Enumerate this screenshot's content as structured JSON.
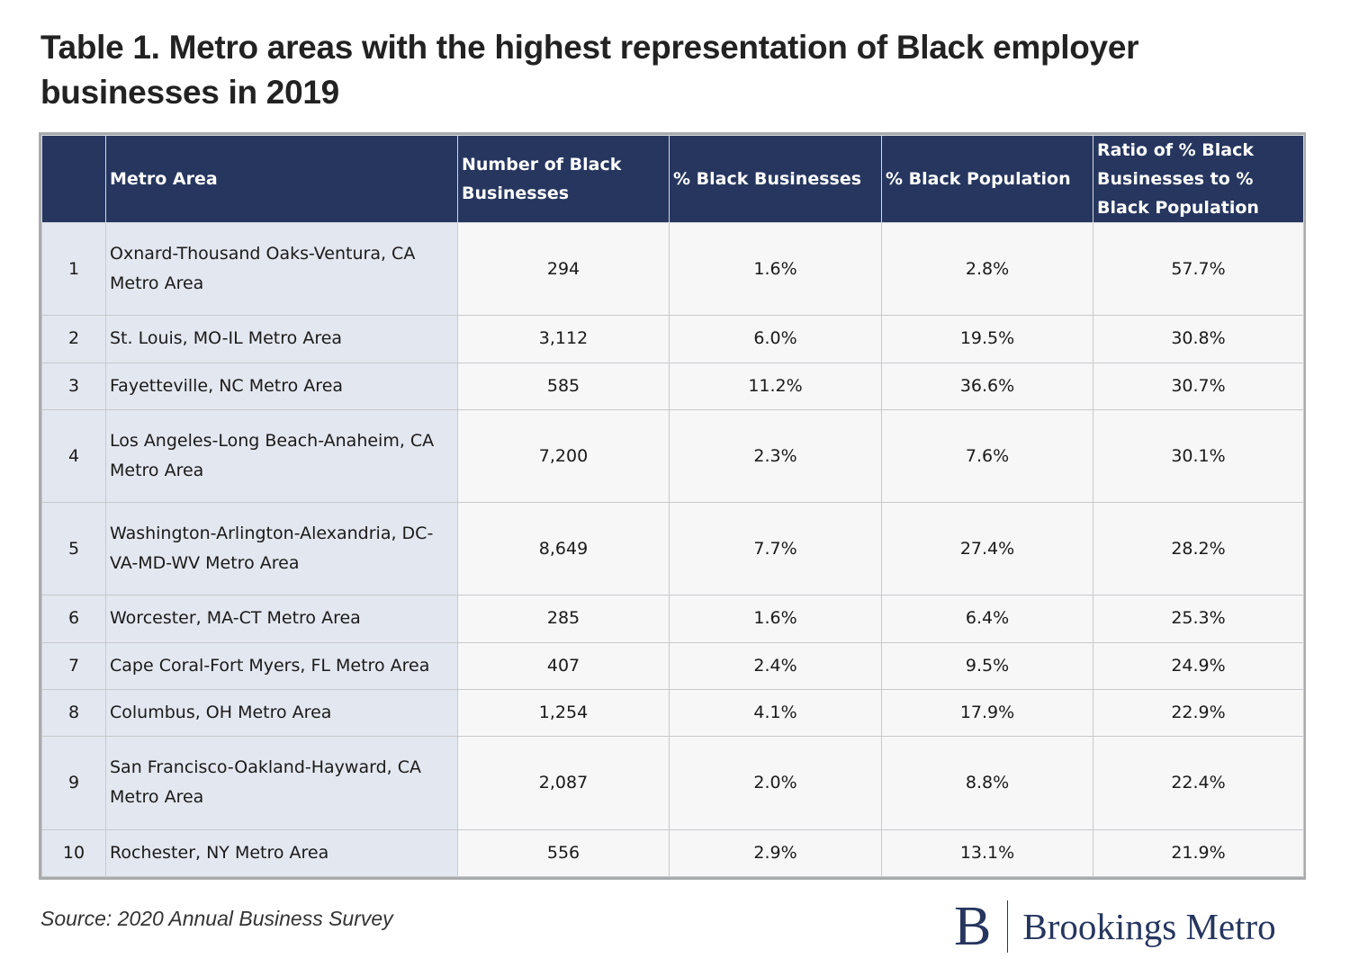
{
  "title": "Table 1. Metro areas with the highest representation of Black employer businesses in 2019",
  "source": "Source: 2020 Annual Business Survey",
  "logo": {
    "mark": "B",
    "text": "Brookings Metro"
  },
  "colors": {
    "header_bg": "#26365f",
    "header_text": "#ffffff",
    "metro_col_bg": "#e3e7ef",
    "cell_bg": "#f7f7f7",
    "brand": "#26365f"
  },
  "chart_data": {
    "type": "table",
    "title": "Table 1. Metro areas with the highest representation of Black employer businesses in 2019",
    "columns": [
      "",
      "Metro Area",
      "Number of Black Businesses",
      "% Black Businesses",
      "% Black Population",
      "Ratio of % Black Businesses to % Black Population"
    ],
    "rows": [
      [
        "1",
        "Oxnard-Thousand Oaks-Ventura, CA Metro Area",
        "294",
        "1.6%",
        "2.8%",
        "57.7%"
      ],
      [
        "2",
        "St. Louis, MO-IL Metro Area",
        "3,112",
        "6.0%",
        "19.5%",
        "30.8%"
      ],
      [
        "3",
        "Fayetteville, NC Metro Area",
        "585",
        "11.2%",
        "36.6%",
        "30.7%"
      ],
      [
        "4",
        "Los Angeles-Long Beach-Anaheim, CA Metro Area",
        "7,200",
        "2.3%",
        "7.6%",
        "30.1%"
      ],
      [
        "5",
        "Washington-Arlington-Alexandria, DC-VA-MD-WV Metro Area",
        "8,649",
        "7.7%",
        "27.4%",
        "28.2%"
      ],
      [
        "6",
        "Worcester, MA-CT Metro Area",
        "285",
        "1.6%",
        "6.4%",
        "25.3%"
      ],
      [
        "7",
        "Cape Coral-Fort Myers, FL Metro Area",
        "407",
        "2.4%",
        "9.5%",
        "24.9%"
      ],
      [
        "8",
        "Columbus, OH Metro Area",
        "1,254",
        "4.1%",
        "17.9%",
        "22.9%"
      ],
      [
        "9",
        "San Francisco-Oakland-Hayward, CA Metro Area",
        "2,087",
        "2.0%",
        "8.8%",
        "22.4%"
      ],
      [
        "10",
        "Rochester, NY Metro Area",
        "556",
        "2.9%",
        "13.1%",
        "21.9%"
      ]
    ],
    "source": "Source: 2020 Annual Business Survey"
  }
}
